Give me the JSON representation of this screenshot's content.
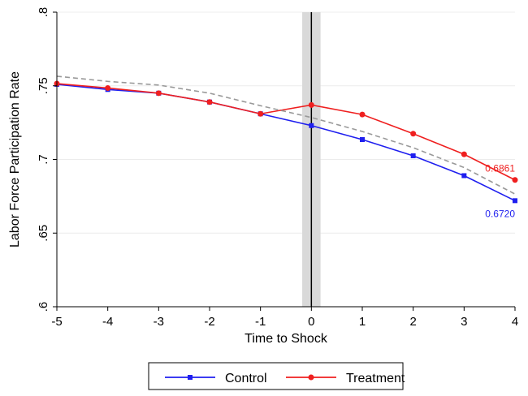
{
  "chart_data": {
    "type": "line",
    "x": [
      -5,
      -4,
      -3,
      -2,
      -1,
      0,
      1,
      2,
      3,
      4
    ],
    "x_ticks": [
      "-5",
      "-4",
      "-3",
      "-2",
      "-1",
      "0",
      "1",
      "2",
      "3",
      "4"
    ],
    "y_ticks": [
      ".6",
      ".65",
      ".7",
      ".75",
      ".8"
    ],
    "xlabel": "Time to Shock",
    "ylabel": "Labor Force Participation Rate",
    "xlim": [
      -5,
      4
    ],
    "ylim": [
      0.6,
      0.8
    ],
    "grid": true,
    "legend_position": "bottom-center",
    "series": [
      {
        "name": "Control",
        "color": "#1f1fef",
        "marker": "square",
        "values": [
          0.751,
          0.7475,
          0.745,
          0.739,
          0.731,
          0.723,
          0.7135,
          0.7025,
          0.689,
          0.672
        ],
        "end_label": "0.6720"
      },
      {
        "name": "Treatment",
        "color": "#ef1f1f",
        "marker": "circle",
        "values": [
          0.7515,
          0.7485,
          0.745,
          0.739,
          0.731,
          0.737,
          0.7305,
          0.7175,
          0.7035,
          0.6861
        ],
        "end_label": "0.6861"
      },
      {
        "color": "#999999",
        "style": "dashed",
        "values": [
          0.7565,
          0.753,
          0.7505,
          0.745,
          0.7365,
          0.7285,
          0.719,
          0.708,
          0.6945,
          0.6765
        ]
      }
    ],
    "shock_line": {
      "x": 0,
      "band": [
        -0.18,
        0.18
      ],
      "line_color": "#000000",
      "band_color": "#d9d9d9"
    }
  }
}
